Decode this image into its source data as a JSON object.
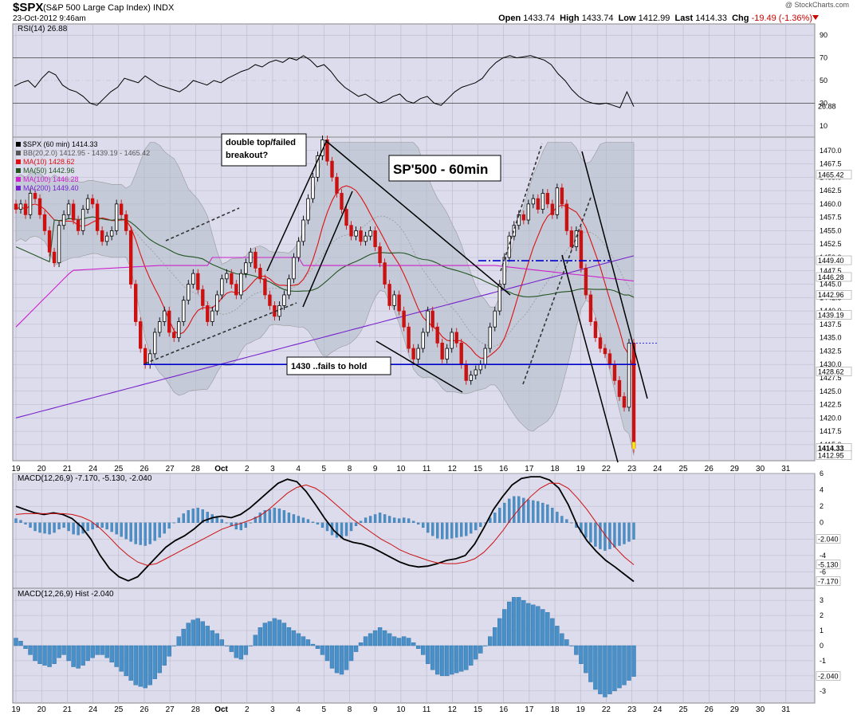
{
  "header": {
    "symbol": "$SPX",
    "name": "(S&P 500 Large Cap Index)",
    "exchange": "INDX",
    "datetime": "23-Oct-2012 9:46am",
    "credit": "@ StockCharts.com",
    "open_label": "Open",
    "open": "1433.74",
    "high_label": "High",
    "high": "1433.74",
    "low_label": "Low",
    "low": "1412.99",
    "last_label": "Last",
    "last": "1414.33",
    "chg_label": "Chg",
    "chg": "-19.49 (-1.36%)"
  },
  "colors": {
    "panel_bg": "#dcdcec",
    "grid": "#b8b8cc",
    "up": "#000000",
    "down": "#cc1111",
    "ma10": "#dd1111",
    "ma50": "#225522",
    "ma100": "#cc22cc",
    "ma200": "#7722cc",
    "bb_fill": "#b0bcc8",
    "annot_line": "#0000cc",
    "hist": "#4a90c8"
  },
  "chart_data": [
    {
      "type": "line",
      "panel": "rsi",
      "title": "RSI(14) 26.88",
      "levels": [
        90,
        70,
        50,
        30,
        10
      ],
      "last_label": "26.88",
      "ylim": [
        0,
        100
      ],
      "values": [
        45,
        48,
        50,
        44,
        52,
        58,
        55,
        46,
        42,
        40,
        36,
        30,
        28,
        34,
        40,
        44,
        52,
        50,
        48,
        54,
        50,
        46,
        44,
        42,
        40,
        44,
        50,
        48,
        46,
        50,
        48,
        52,
        55,
        58,
        60,
        64,
        62,
        66,
        68,
        66,
        70,
        68,
        72,
        68,
        62,
        64,
        58,
        50,
        44,
        40,
        36,
        38,
        34,
        30,
        32,
        36,
        38,
        32,
        30,
        34,
        36,
        30,
        28,
        34,
        40,
        44,
        46,
        48,
        52,
        60,
        66,
        70,
        72,
        70,
        71,
        72,
        70,
        68,
        64,
        56,
        50,
        42,
        36,
        32,
        30,
        29,
        30,
        28,
        26,
        40,
        27
      ],
      "x_ticks": []
    },
    {
      "type": "candlestick",
      "panel": "price",
      "title": "$SPX (60 min) 1414.33",
      "ylim": [
        1412.0,
        1472.5
      ],
      "y_ticks": [
        1470.0,
        1467.5,
        1465.0,
        1462.5,
        1460.0,
        1457.5,
        1455.0,
        1452.5,
        1450.0,
        1447.5,
        1445.0,
        1442.5,
        1440.0,
        1437.5,
        1435.0,
        1432.5,
        1430.0,
        1427.5,
        1425.0,
        1422.5,
        1420.0,
        1417.5,
        1415.0
      ],
      "right_labels": [
        "1465.42",
        "1449.40",
        "1446.28",
        "1442.96",
        "1439.19",
        "1428.62",
        "1414.33",
        "1412.95"
      ],
      "legend": [
        {
          "text": "$SPX (60 min) 1414.33",
          "color": "#000000"
        },
        {
          "text": "BB(20,2.0) 1412.95 - 1439.19 - 1465.42",
          "color": "#555555"
        },
        {
          "text": "MA(10) 1428.62",
          "color": "#dd1111"
        },
        {
          "text": "MA(50) 1442.96",
          "color": "#225522"
        },
        {
          "text": "MA(100) 1446.28",
          "color": "#cc22cc"
        },
        {
          "text": "MA(200) 1449.40",
          "color": "#7722cc"
        }
      ],
      "annotations": {
        "title_box": "SP'500 - 60min",
        "note_box": "double top/failed breakout?",
        "support_box": "1430 ..fails to hold"
      },
      "closes": [
        1459,
        1460,
        1458,
        1462,
        1461,
        1458,
        1455,
        1451,
        1449,
        1456,
        1458,
        1460,
        1457,
        1455,
        1459,
        1461,
        1460,
        1455,
        1453,
        1454,
        1455,
        1460,
        1458,
        1455,
        1445,
        1438,
        1433,
        1430,
        1432,
        1436,
        1438,
        1440,
        1436,
        1435,
        1438,
        1442,
        1445,
        1447,
        1444,
        1441,
        1438,
        1440,
        1443,
        1446,
        1447,
        1445,
        1443,
        1447,
        1449,
        1451,
        1448,
        1446,
        1443,
        1441,
        1439,
        1441,
        1443,
        1446,
        1450,
        1453,
        1457,
        1461,
        1465,
        1469,
        1472,
        1468,
        1465,
        1462,
        1459,
        1456,
        1454,
        1455,
        1453,
        1454,
        1455,
        1452,
        1449,
        1445,
        1441,
        1443,
        1440,
        1437,
        1433,
        1431,
        1433,
        1436,
        1440,
        1437,
        1434,
        1431,
        1433,
        1436,
        1434,
        1430,
        1427,
        1428,
        1429,
        1430,
        1433,
        1437,
        1440,
        1445,
        1450,
        1454,
        1456,
        1458,
        1457,
        1460,
        1461,
        1459,
        1462,
        1460,
        1458,
        1463,
        1460,
        1455,
        1452,
        1455,
        1448,
        1443,
        1438,
        1435,
        1433,
        1432,
        1430,
        1427,
        1424,
        1422,
        1434,
        1414.33
      ],
      "x_ticks": [
        "19",
        "20",
        "21",
        "24",
        "25",
        "26",
        "27",
        "28",
        "Oct",
        "2",
        "3",
        "4",
        "5",
        "8",
        "9",
        "10",
        "11",
        "12",
        "15",
        "16",
        "17",
        "18",
        "19",
        "22",
        "23",
        "24",
        "25",
        "26",
        "29",
        "30",
        "31"
      ]
    },
    {
      "type": "line",
      "panel": "macd",
      "title": "MACD(12,26,9) -7.170, -5.130, -2.040",
      "ylim": [
        -8,
        6
      ],
      "y_ticks": [
        6,
        4,
        2,
        0,
        -2,
        -4,
        -6
      ],
      "right_labels": [
        "-2.040",
        "-5.130",
        "-7.170"
      ],
      "series": [
        {
          "name": "MACD",
          "color": "#000000",
          "values": [
            2.0,
            1.6,
            1.2,
            1.0,
            1.2,
            1.0,
            0.5,
            -0.5,
            -2.0,
            -4.0,
            -5.6,
            -6.6,
            -7.1,
            -6.6,
            -5.4,
            -4.2,
            -3.0,
            -2.2,
            -1.6,
            -0.8,
            0.2,
            0.6,
            0.8,
            0.6,
            1.0,
            1.8,
            2.8,
            3.8,
            4.8,
            5.3,
            5.0,
            3.8,
            2.2,
            0.5,
            -1.0,
            -2.0,
            -2.4,
            -2.6,
            -3.0,
            -3.6,
            -4.2,
            -4.8,
            -5.2,
            -5.4,
            -5.3,
            -5.0,
            -4.6,
            -4.4,
            -4.0,
            -2.6,
            -0.6,
            1.6,
            3.2,
            4.6,
            5.4,
            5.6,
            5.6,
            5.2,
            4.2,
            2.2,
            -0.4,
            -2.2,
            -3.5,
            -4.6,
            -5.4,
            -6.3,
            -7.17
          ]
        },
        {
          "name": "Signal",
          "color": "#cc1111",
          "values": [
            1.0,
            1.1,
            1.1,
            1.1,
            1.1,
            1.1,
            1.0,
            0.7,
            0.2,
            -0.7,
            -1.8,
            -3.0,
            -4.0,
            -4.8,
            -5.2,
            -5.0,
            -4.4,
            -3.8,
            -3.2,
            -2.6,
            -2.0,
            -1.4,
            -0.8,
            -0.4,
            -0.1,
            0.3,
            0.8,
            1.6,
            2.6,
            3.6,
            4.3,
            4.6,
            4.2,
            3.4,
            2.4,
            1.4,
            0.4,
            -0.4,
            -1.2,
            -2.0,
            -2.6,
            -3.3,
            -3.8,
            -4.2,
            -4.6,
            -4.9,
            -5.0,
            -5.0,
            -4.8,
            -4.4,
            -3.6,
            -2.4,
            -1.0,
            0.6,
            2.0,
            3.2,
            4.2,
            4.8,
            4.8,
            4.2,
            3.0,
            1.6,
            0.0,
            -1.6,
            -3.0,
            -4.2,
            -5.13
          ]
        }
      ],
      "x_ticks": []
    },
    {
      "type": "bar",
      "panel": "hist",
      "title": "MACD(12,26,9) Hist -2.040",
      "ylim": [
        -3.8,
        3.8
      ],
      "y_ticks": [
        3,
        2,
        1,
        0,
        -1,
        -2,
        -3
      ],
      "right_labels": [
        "-2.040"
      ],
      "values": [
        0.5,
        0.3,
        -0.2,
        -0.6,
        -1.0,
        -1.2,
        -1.3,
        -1.4,
        -1.2,
        -0.8,
        -0.6,
        -1.0,
        -1.4,
        -1.5,
        -1.3,
        -1.0,
        -0.8,
        -0.6,
        -0.6,
        -0.8,
        -1.1,
        -1.4,
        -1.7,
        -2.0,
        -2.3,
        -2.6,
        -2.7,
        -2.8,
        -2.6,
        -2.2,
        -1.8,
        -1.3,
        -0.7,
        0.0,
        0.6,
        1.1,
        1.5,
        1.7,
        1.8,
        1.6,
        1.3,
        1.0,
        0.8,
        0.4,
        0.0,
        -0.4,
        -0.8,
        -0.9,
        -0.6,
        0.0,
        0.7,
        1.2,
        1.5,
        1.6,
        1.8,
        1.7,
        1.5,
        1.2,
        1.0,
        0.8,
        0.6,
        0.4,
        0.1,
        -0.2,
        -0.6,
        -1.0,
        -1.5,
        -1.8,
        -1.9,
        -1.6,
        -1.0,
        -0.4,
        0.2,
        0.6,
        0.8,
        1.0,
        1.2,
        1.0,
        0.8,
        0.6,
        0.5,
        0.6,
        0.5,
        0.2,
        -0.2,
        -0.6,
        -1.2,
        -1.6,
        -1.9,
        -2.0,
        -2.0,
        -1.9,
        -1.8,
        -1.7,
        -1.6,
        -1.3,
        -0.9,
        -0.5,
        0.0,
        0.6,
        1.2,
        1.8,
        2.4,
        2.9,
        3.2,
        3.2,
        3.0,
        2.8,
        2.7,
        2.6,
        2.4,
        2.2,
        1.8,
        1.3,
        0.8,
        0.4,
        0.0,
        -0.6,
        -1.2,
        -1.8,
        -2.4,
        -2.9,
        -3.2,
        -3.4,
        -3.2,
        -3.0,
        -2.8,
        -2.6,
        -2.3,
        -2.04
      ],
      "x_ticks": [
        "19",
        "20",
        "21",
        "24",
        "25",
        "26",
        "27",
        "28",
        "Oct",
        "2",
        "3",
        "4",
        "5",
        "8",
        "9",
        "10",
        "11",
        "12",
        "15",
        "16",
        "17",
        "18",
        "19",
        "22",
        "23",
        "24",
        "25",
        "26",
        "29",
        "30",
        "31"
      ]
    }
  ]
}
